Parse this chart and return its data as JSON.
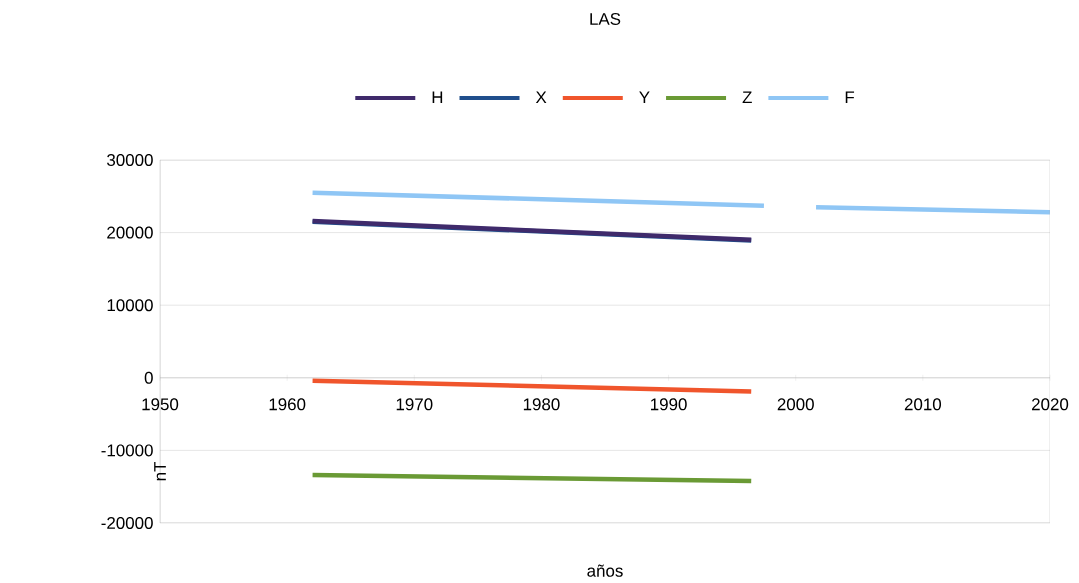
{
  "chart_data": {
    "type": "line",
    "title": "LAS",
    "xlabel": "años",
    "ylabel": "nT",
    "xlim": [
      1950,
      2020
    ],
    "xticks": [
      1950,
      1960,
      1970,
      1980,
      1990,
      2000,
      2010,
      2020
    ],
    "ylim": [
      -20000,
      30000
    ],
    "yticks": [
      -20000,
      -10000,
      0,
      10000,
      20000,
      30000
    ],
    "grid": "y",
    "legend": "top",
    "line_style": "solid",
    "series": [
      {
        "name": "H",
        "color": "#3f2a6b",
        "x": [
          1962,
          1996.5
        ],
        "values": [
          21600,
          19000
        ]
      },
      {
        "name": "X",
        "color": "#1f4e8c",
        "x": [
          1962,
          1996.5
        ],
        "values": [
          21500,
          18900
        ]
      },
      {
        "name": "Y",
        "color": "#f0552c",
        "x": [
          1962,
          1996.5
        ],
        "values": [
          -400,
          -1900
        ]
      },
      {
        "name": "Z",
        "color": "#6a9a35",
        "x": [
          1962,
          1996.5
        ],
        "values": [
          -13400,
          -14200
        ]
      },
      {
        "name": "F",
        "color": "#8fc6f5",
        "x": [
          1962,
          1997.5,
          1999.5,
          2001.6,
          2020
        ],
        "values": [
          25500,
          23700,
          null,
          23500,
          22800
        ]
      }
    ]
  }
}
